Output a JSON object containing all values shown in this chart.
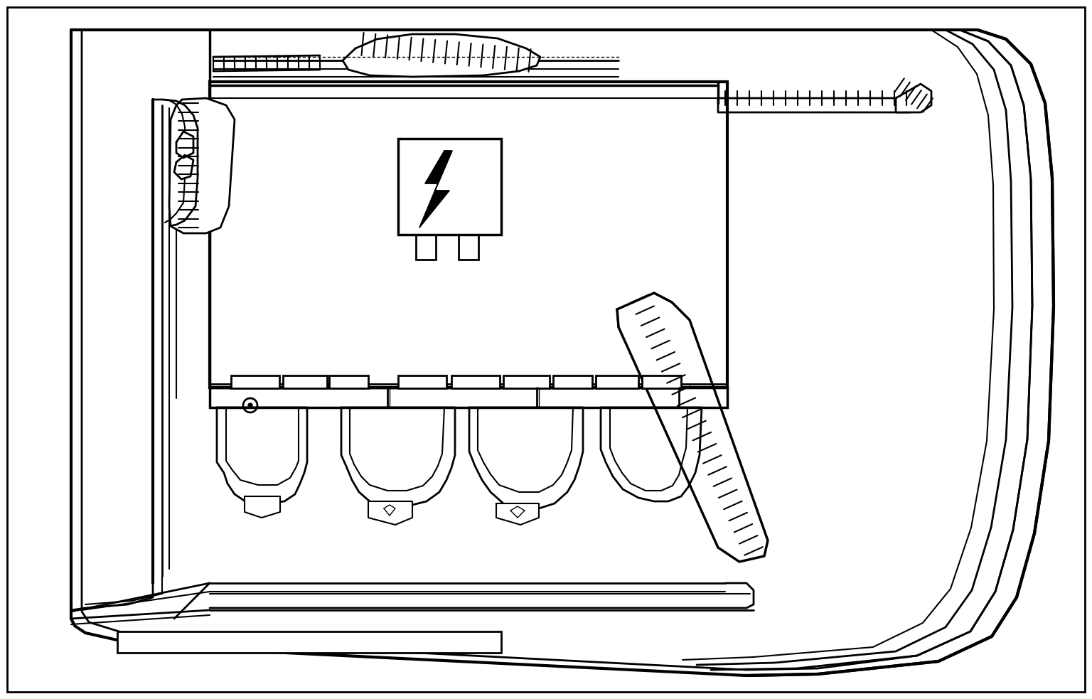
{
  "background_color": "#ffffff",
  "line_color": "#000000",
  "fig_width": 15.36,
  "fig_height": 9.83,
  "lw_outer": 3.0,
  "lw_main": 2.0,
  "lw_thin": 1.5
}
